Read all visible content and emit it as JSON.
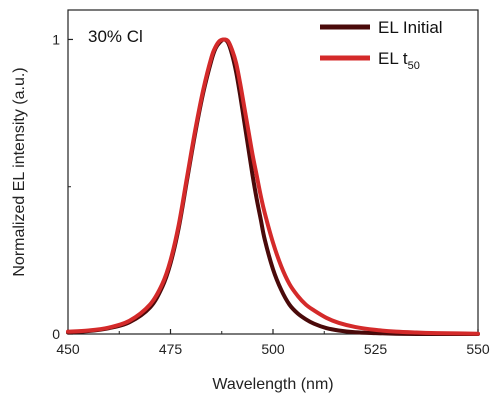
{
  "chart_data": {
    "type": "line",
    "title": "",
    "annotation": "30% Cl",
    "xlabel": "Wavelength (nm)",
    "ylabel": "Normalized EL intensity (a.u.)",
    "xlim": [
      450,
      550
    ],
    "ylim": [
      0,
      1.1
    ],
    "xticks": [
      450,
      475,
      500,
      525,
      550
    ],
    "xtick_labels": [
      "450",
      "475",
      "500",
      "525",
      "550"
    ],
    "yticks": [
      0,
      1
    ],
    "ytick_labels": [
      "0",
      "1"
    ],
    "legend_position": "top-right",
    "series": [
      {
        "name": "EL Initial",
        "legend_main": "EL Initial",
        "legend_sub": "",
        "color": "#4a0a0a",
        "x": [
          450,
          455,
          460,
          465,
          470,
          473,
          475,
          477,
          479,
          481,
          483,
          485,
          486,
          487,
          488,
          489,
          490,
          491,
          492,
          493,
          494,
          495,
          496,
          497,
          498,
          500,
          502,
          504,
          506,
          508,
          510,
          513,
          516,
          520,
          525,
          530,
          535,
          540,
          545,
          550
        ],
        "y": [
          0.005,
          0.01,
          0.02,
          0.04,
          0.09,
          0.16,
          0.24,
          0.36,
          0.52,
          0.68,
          0.82,
          0.93,
          0.97,
          0.99,
          1.0,
          0.99,
          0.95,
          0.89,
          0.81,
          0.72,
          0.63,
          0.54,
          0.46,
          0.39,
          0.32,
          0.22,
          0.15,
          0.1,
          0.07,
          0.05,
          0.035,
          0.02,
          0.012,
          0.006,
          0.003,
          0.001,
          0.0,
          0.0,
          0.0,
          0.0
        ]
      },
      {
        "name": "EL t50",
        "legend_main": "EL t",
        "legend_sub": "50",
        "color": "#d42a2a",
        "x": [
          450,
          455,
          460,
          465,
          470,
          473,
          475,
          477,
          479,
          481,
          483,
          485,
          486,
          487,
          488,
          489,
          490,
          491,
          492,
          493,
          494,
          495,
          496,
          497,
          498,
          500,
          502,
          504,
          506,
          508,
          510,
          513,
          516,
          520,
          525,
          530,
          535,
          540,
          545,
          550
        ],
        "y": [
          0.008,
          0.012,
          0.022,
          0.045,
          0.1,
          0.17,
          0.25,
          0.37,
          0.53,
          0.69,
          0.83,
          0.94,
          0.975,
          0.995,
          1.0,
          0.995,
          0.965,
          0.92,
          0.85,
          0.77,
          0.69,
          0.61,
          0.54,
          0.47,
          0.41,
          0.31,
          0.23,
          0.17,
          0.13,
          0.1,
          0.08,
          0.055,
          0.038,
          0.024,
          0.014,
          0.008,
          0.005,
          0.003,
          0.002,
          0.001
        ]
      }
    ]
  }
}
